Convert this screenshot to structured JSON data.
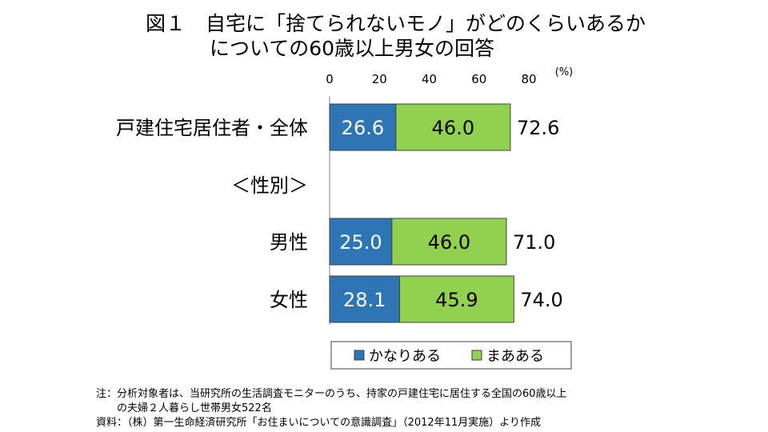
{
  "title": {
    "line1": "図１　自宅に「捨てられないモノ」がどのくらいあるか",
    "line2": "についての60歳以上男女の回答"
  },
  "chart_data": {
    "type": "bar",
    "orientation": "horizontal",
    "stacked": true,
    "xlim": [
      0,
      80
    ],
    "x_ticks": [
      "0",
      "20",
      "40",
      "60",
      "80"
    ],
    "unit_label": "(%)",
    "grid": false,
    "legend_position": "bottom",
    "categories": [
      "戸建住宅居住者・全体",
      "＜性別＞",
      "男性",
      "女性"
    ],
    "series": [
      {
        "name": "かなりある",
        "color": "#2e75b6",
        "values": [
          26.6,
          null,
          25.0,
          28.1
        ],
        "labels": [
          "26.6",
          "",
          "25.0",
          "28.1"
        ]
      },
      {
        "name": "まあある",
        "color": "#92d050",
        "values": [
          46.0,
          null,
          46.0,
          45.9
        ],
        "labels": [
          "46.0",
          "",
          "46.0",
          "45.9"
        ]
      }
    ],
    "totals": [
      "72.6",
      "",
      "71.0",
      "74.0"
    ]
  },
  "notes": {
    "note_line1": "注：分析対象者は、当研究所の生活調査モニターのうち、持家の戸建住宅に居住する全国の60歳以上",
    "note_line2": "　　の夫婦２人暮らし世帯男女522名",
    "source": "資料：（株）第一生命経済研究所「お住まいについての意識調査」（2012年11月実施）より作成"
  }
}
